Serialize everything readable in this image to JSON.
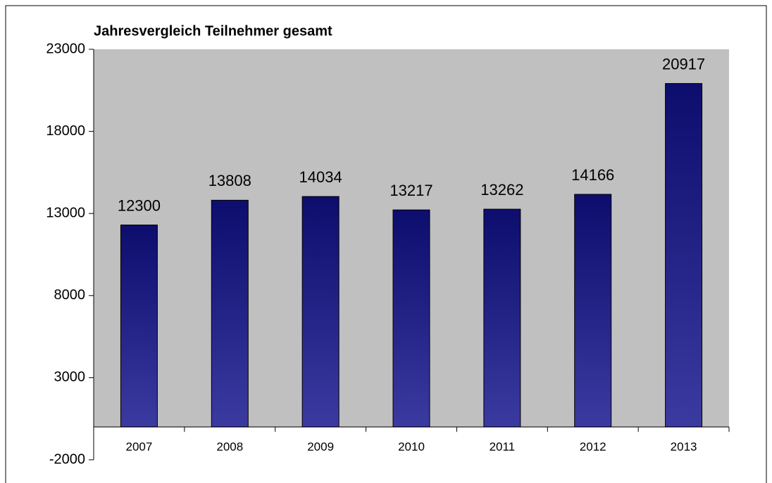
{
  "chart_data": {
    "type": "bar",
    "title": "Jahresvergleich Teilnehmer gesamt",
    "categories": [
      "2007",
      "2008",
      "2009",
      "2010",
      "2011",
      "2012",
      "2013"
    ],
    "values": [
      12300,
      13808,
      14034,
      13217,
      13262,
      14166,
      20917
    ],
    "color": "#1a1a80",
    "ylim": [
      -2000,
      23000
    ],
    "yticks": [
      -2000,
      3000,
      8000,
      13000,
      18000,
      23000
    ]
  }
}
